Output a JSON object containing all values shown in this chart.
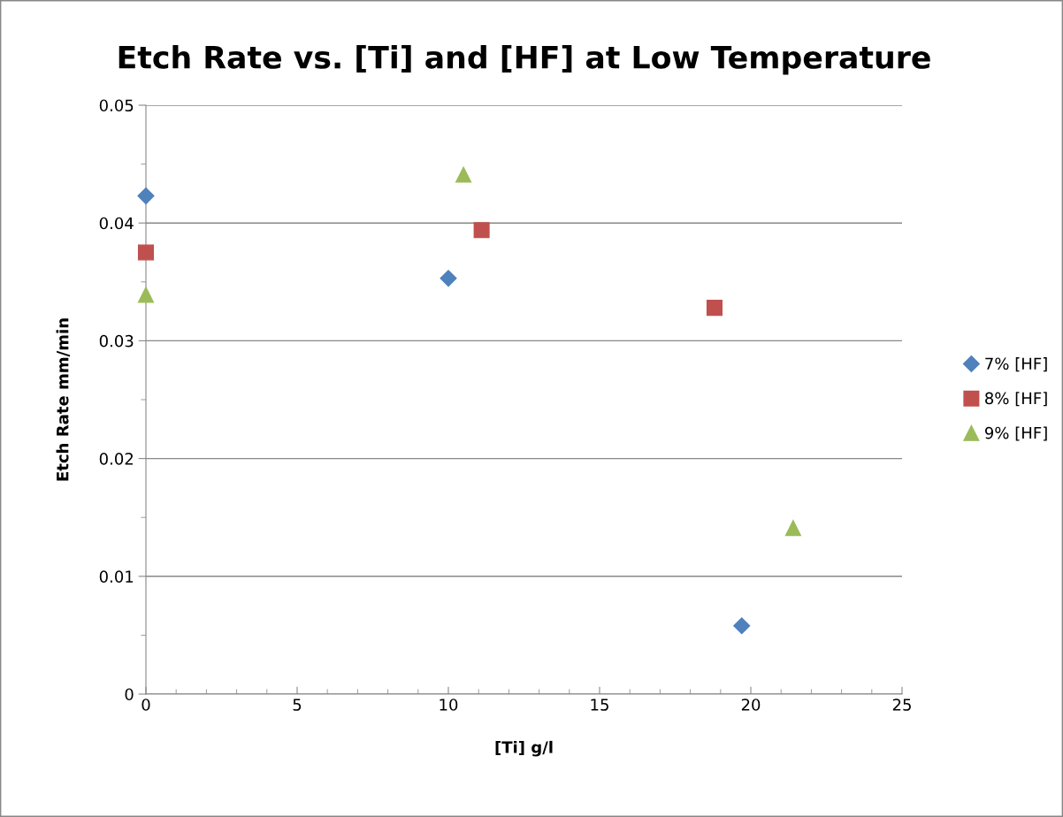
{
  "chart_data": {
    "type": "scatter",
    "title": "Etch Rate vs. [Ti] and [HF] at Low Temperature",
    "xlabel": "[Ti] g/l",
    "ylabel": "Etch Rate mm/min",
    "xlim": [
      0,
      25
    ],
    "xticks": [
      0,
      5,
      10,
      15,
      20,
      25
    ],
    "ylim": [
      0,
      0.05
    ],
    "yticks": [
      {
        "value": 0,
        "label": "0"
      },
      0.01,
      0.02,
      0.03,
      0.04,
      0.05
    ],
    "grid": "y",
    "legend": "right",
    "series": [
      {
        "name": "7% [HF]",
        "color": "#4f81bd",
        "marker": "diamond",
        "x": [
          0,
          10.0,
          19.7
        ],
        "values": [
          0.0423,
          0.0353,
          0.0058
        ]
      },
      {
        "name": "8% [HF]",
        "color": "#c0504d",
        "marker": "square",
        "x": [
          0,
          11.1,
          18.8
        ],
        "values": [
          0.0375,
          0.0394,
          0.0328
        ]
      },
      {
        "name": "9% [HF]",
        "color": "#9bbb59",
        "marker": "triangle",
        "x": [
          0,
          10.5,
          21.4
        ],
        "values": [
          0.0339,
          0.0441,
          0.0141
        ]
      }
    ]
  }
}
